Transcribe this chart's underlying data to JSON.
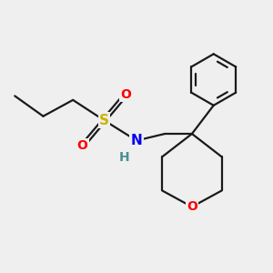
{
  "background_color": "#efefef",
  "bond_color": "#1a1a1a",
  "bond_width": 1.6,
  "atom_colors": {
    "S": "#ccb200",
    "O": "#ff0000",
    "N": "#0000ee",
    "H": "#4a9090",
    "C": "#1a1a1a"
  },
  "font_size": 10.5,
  "figsize": [
    3.0,
    3.0
  ],
  "dpi": 100
}
